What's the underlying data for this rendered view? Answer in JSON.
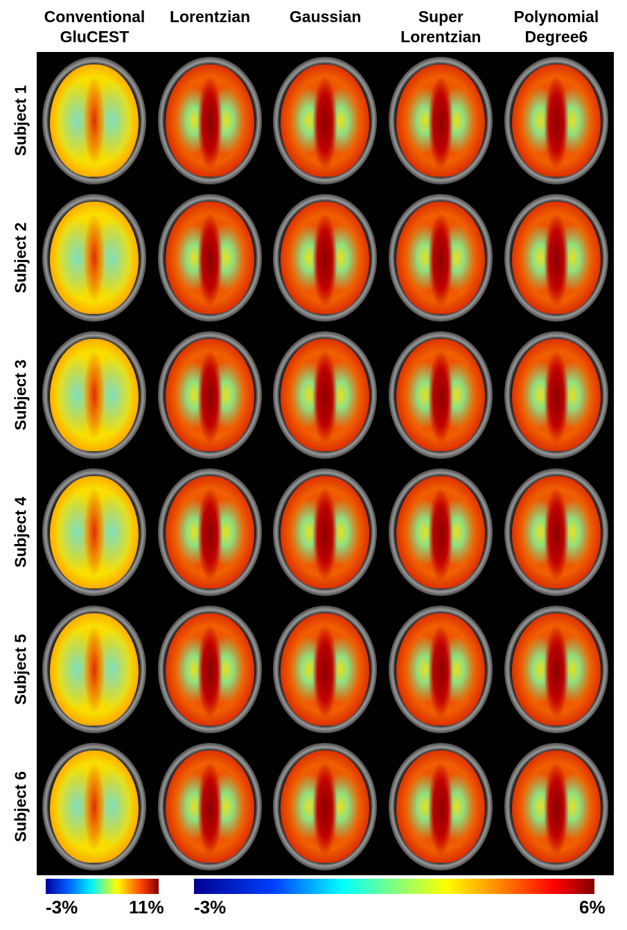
{
  "columns": [
    "Conventional\nGluCEST",
    "Lorentzian",
    "Gaussian",
    "Super\nLorentzian",
    "Polynomial\nDegree6"
  ],
  "rows": [
    "Subject 1",
    "Subject 2",
    "Subject 3",
    "Subject 4",
    "Subject 5",
    "Subject 6"
  ],
  "colorbars": [
    {
      "min_label": "-3%",
      "max_label": "11%",
      "colormap": "jet",
      "applies_to": "Conventional GluCEST"
    },
    {
      "min_label": "-3%",
      "max_label": "6%",
      "colormap": "jet",
      "applies_to": "Lorentzian, Gaussian, Super Lorentzian, Polynomial Degree6"
    }
  ]
}
